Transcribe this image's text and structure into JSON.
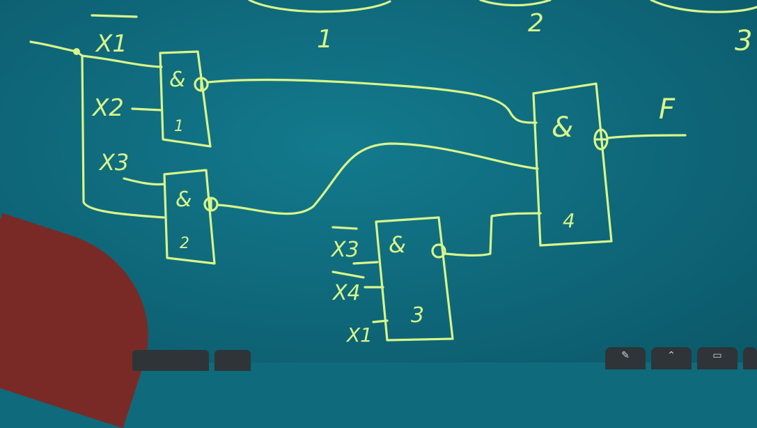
{
  "top_labels": [
    "1",
    "2",
    "3"
  ],
  "inputs": {
    "x1_bar": "X1",
    "x2": "X2",
    "x3": "X3",
    "x3_bar": "X3",
    "x4_bar": "X4",
    "x1": "X1"
  },
  "gates": [
    {
      "symbol": "&",
      "number": "1"
    },
    {
      "symbol": "&",
      "number": "2"
    },
    {
      "symbol": "&",
      "number": "3"
    },
    {
      "symbol": "&",
      "number": "4"
    }
  ],
  "output": {
    "label": "F"
  },
  "toolbar": {
    "pen_icon": "pen-icon",
    "shape_icon": "shape-icon",
    "grid_icon": "grid-icon"
  },
  "colors": {
    "board": "#0f6a7c",
    "ink": "#d8f58a"
  }
}
